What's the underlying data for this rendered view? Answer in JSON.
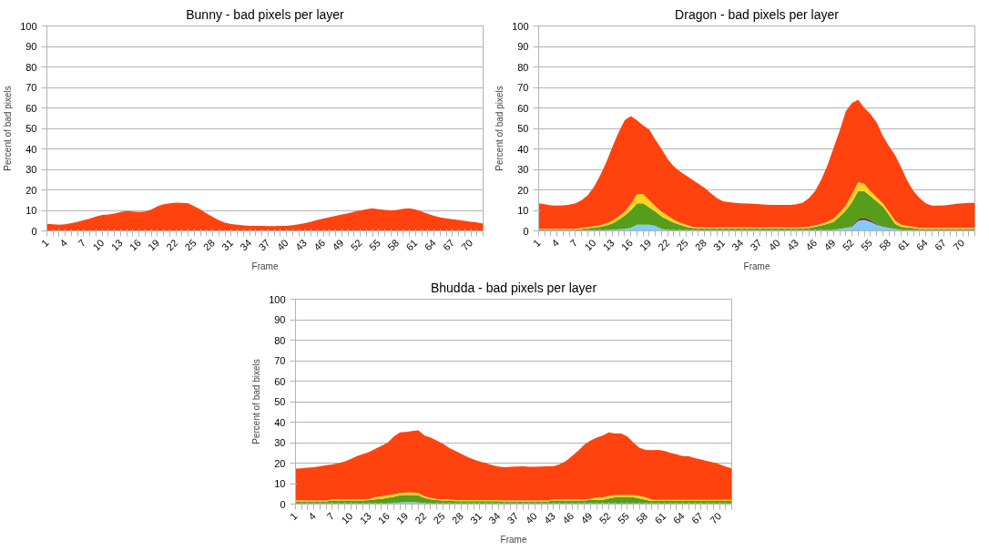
{
  "chart_data": [
    {
      "type": "area",
      "title": "Bunny - bad pixels per layer",
      "xlabel": "Frame",
      "ylabel": "Percent of bad pixels",
      "stacked": true,
      "grid": "y",
      "ylim": [
        0,
        100
      ],
      "yticks": [
        0,
        10,
        20,
        30,
        40,
        50,
        60,
        70,
        80,
        90,
        100
      ],
      "categories": [
        "1",
        null,
        null,
        "4",
        null,
        null,
        "7",
        null,
        null,
        "10",
        null,
        null,
        "13",
        null,
        null,
        "16",
        null,
        null,
        "19",
        null,
        null,
        "22",
        null,
        null,
        "25",
        null,
        null,
        "28",
        null,
        null,
        "31",
        null,
        null,
        "34",
        null,
        null,
        "37",
        null,
        null,
        "40",
        null,
        null,
        "43",
        null,
        null,
        "46",
        null,
        null,
        "49",
        null,
        null,
        "52",
        null,
        null,
        "55",
        null,
        null,
        "58",
        null,
        null,
        "61",
        null,
        null,
        "64",
        null,
        null,
        "67",
        null,
        null,
        "70",
        null,
        null
      ],
      "series": [
        {
          "color": "#ff420e",
          "values": [
            3.5,
            3.2,
            3,
            3.2,
            3.8,
            4.5,
            5.2,
            6,
            7,
            7.8,
            8,
            8.5,
            9.2,
            9.7,
            9.5,
            9.2,
            9.5,
            10.5,
            12,
            13,
            13.5,
            13.8,
            13.7,
            13.5,
            12,
            10.5,
            8.5,
            6.8,
            5.2,
            4,
            3.3,
            3,
            2.7,
            2.5,
            2.4,
            2.4,
            2.3,
            2.3,
            2.4,
            2.5,
            2.8,
            3.2,
            3.8,
            4.5,
            5.3,
            6,
            6.7,
            7.3,
            8,
            8.6,
            9.3,
            10,
            10.6,
            11,
            10.6,
            10.2,
            10,
            10.2,
            10.8,
            11,
            10.5,
            9.5,
            8.3,
            7.3,
            6.6,
            6.1,
            5.7,
            5.3,
            4.9,
            4.5,
            4.1,
            3.6
          ]
        }
      ]
    },
    {
      "type": "area",
      "title": "Dragon - bad pixels per layer",
      "xlabel": "Frame",
      "ylabel": "Percent of bad pixels",
      "stacked": true,
      "grid": "y",
      "ylim": [
        0,
        100
      ],
      "yticks": [
        0,
        10,
        20,
        30,
        40,
        50,
        60,
        70,
        80,
        90,
        100
      ],
      "categories": [
        "1",
        null,
        null,
        "4",
        null,
        null,
        "7",
        null,
        null,
        "10",
        null,
        null,
        "13",
        null,
        null,
        "16",
        null,
        null,
        "19",
        null,
        null,
        "22",
        null,
        null,
        "25",
        null,
        null,
        "28",
        null,
        null,
        "31",
        null,
        null,
        "34",
        null,
        null,
        "37",
        null,
        null,
        "40",
        null,
        null,
        "43",
        null,
        null,
        "46",
        null,
        null,
        "49",
        null,
        null,
        "52",
        null,
        null,
        "55",
        null,
        null,
        "58",
        null,
        null,
        "61",
        null,
        null,
        "64",
        null,
        null,
        "67",
        null,
        null,
        "70",
        null,
        null
      ],
      "series": [
        {
          "color": "#83caff",
          "values": [
            0.3,
            0.3,
            0.3,
            0.3,
            0.3,
            0.3,
            0.3,
            0.3,
            0.3,
            0.3,
            0.3,
            0.3,
            0.6,
            0.8,
            1,
            1.5,
            3,
            3,
            3,
            2.5,
            1,
            0.5,
            0.3,
            0.3,
            0.3,
            0.3,
            0.3,
            0.3,
            0.3,
            0.3,
            0.3,
            0.3,
            0.3,
            0.3,
            0.3,
            0.3,
            0.3,
            0.3,
            0.3,
            0.3,
            0.3,
            0.3,
            0.3,
            0.3,
            0.3,
            0.3,
            0.3,
            0.3,
            0.5,
            1,
            1.5,
            2,
            5,
            5.5,
            4.5,
            3,
            2,
            1.5,
            1,
            0.3,
            0.3,
            0.3,
            0.3,
            0.3,
            0.3,
            0.3,
            0.3,
            0.3,
            0.3,
            0.3,
            0.3,
            0.3
          ]
        },
        {
          "color": "#7e0021",
          "values": [
            0,
            0,
            0,
            0,
            0,
            0,
            0,
            0,
            0,
            0,
            0,
            0,
            0,
            0,
            0,
            0,
            0,
            0,
            0,
            0,
            0,
            0,
            0,
            0,
            0,
            0,
            0,
            0,
            0,
            0,
            0,
            0,
            0,
            0,
            0,
            0,
            0,
            0,
            0,
            0,
            0,
            0,
            0,
            0,
            0,
            0,
            0,
            0,
            0,
            0,
            0,
            0.3,
            0.7,
            0.8,
            0.6,
            0.3,
            0,
            0,
            0,
            0,
            0,
            0,
            0,
            0,
            0,
            0,
            0,
            0,
            0,
            0,
            0,
            0
          ]
        },
        {
          "color": "#579d1c",
          "values": [
            0.4,
            0.4,
            0.4,
            0.4,
            0.4,
            0.4,
            0.4,
            0.7,
            1,
            1.4,
            1.7,
            2.4,
            3.1,
            4.7,
            6.5,
            8.5,
            10.5,
            10.5,
            8.5,
            7,
            6,
            5,
            3.7,
            2.7,
            1.7,
            1.2,
            1,
            1,
            1,
            1,
            1,
            1,
            1,
            1,
            1,
            1,
            1,
            1,
            1,
            1,
            1,
            1,
            1,
            1,
            1.2,
            1.7,
            2.4,
            3.2,
            4,
            6,
            8.5,
            11.7,
            13.8,
            13.2,
            11.9,
            11.2,
            10,
            6.5,
            2.5,
            1.7,
            1.4,
            1.2,
            0.7,
            0.7,
            0.7,
            0.7,
            0.7,
            0.7,
            0.7,
            0.7,
            0.7,
            0.7
          ]
        },
        {
          "color": "#ffd320",
          "values": [
            0.3,
            0.3,
            0.3,
            0.3,
            0.3,
            0.3,
            0.3,
            0.5,
            0.5,
            0.5,
            0.8,
            1,
            1.3,
            1.5,
            2,
            3,
            4.5,
            4.5,
            3.5,
            2.5,
            2.5,
            2,
            1.5,
            1,
            1,
            0.5,
            0.4,
            0.4,
            0.4,
            0.4,
            0.4,
            0.4,
            0.4,
            0.4,
            0.4,
            0.4,
            0.4,
            0.4,
            0.4,
            0.4,
            0.4,
            0.4,
            0.4,
            0.4,
            0.5,
            0.7,
            0.8,
            1,
            1.5,
            2,
            2.5,
            4,
            4.3,
            3.5,
            2.5,
            2,
            1.5,
            1.5,
            1.5,
            1,
            0.8,
            0.5,
            0.5,
            0.5,
            0.5,
            0.5,
            0.5,
            0.5,
            0.5,
            0.5,
            0.5,
            0.5
          ]
        },
        {
          "color": "#ff420e",
          "values": [
            12.5,
            12,
            11.5,
            11.3,
            11.5,
            11.8,
            12.5,
            13.5,
            15.7,
            19.3,
            24.2,
            29.8,
            36,
            41,
            44.5,
            43,
            36,
            33.5,
            34.5,
            32.5,
            30.5,
            27.5,
            26,
            25,
            24,
            23,
            21.3,
            19.3,
            16.8,
            14.3,
            12.8,
            12.3,
            12,
            11.8,
            11.6,
            11.5,
            11.3,
            11.1,
            11,
            11,
            11,
            11,
            11.3,
            12.1,
            14,
            16.8,
            21.5,
            27.5,
            34.5,
            40,
            46,
            44.5,
            40.2,
            37,
            37.5,
            36.5,
            33,
            32,
            32,
            28,
            22,
            17.5,
            14.5,
            12,
            10.8,
            10.8,
            11,
            11.3,
            11.7,
            12,
            12.2,
            12.2
          ]
        }
      ]
    },
    {
      "type": "area",
      "title": "Bhudda - bad pixels per layer",
      "xlabel": "Frame",
      "ylabel": "Percent of bad bixels",
      "stacked": true,
      "grid": "y",
      "ylim": [
        0,
        100
      ],
      "yticks": [
        0,
        10,
        20,
        30,
        40,
        50,
        60,
        70,
        80,
        90,
        100
      ],
      "categories": [
        "1",
        null,
        null,
        "4",
        null,
        null,
        "7",
        null,
        null,
        "10",
        null,
        null,
        "13",
        null,
        null,
        "16",
        null,
        null,
        "19",
        null,
        null,
        "22",
        null,
        null,
        "25",
        null,
        null,
        "28",
        null,
        null,
        "31",
        null,
        null,
        "34",
        null,
        null,
        "37",
        null,
        null,
        "40",
        null,
        null,
        "43",
        null,
        null,
        "46",
        null,
        null,
        "49",
        null,
        null,
        "52",
        null,
        null,
        "55",
        null,
        null,
        "58",
        null,
        null,
        "61",
        null,
        null,
        "64",
        null,
        null,
        "67",
        null,
        null,
        "70",
        null,
        null
      ],
      "series": [
        {
          "color": "#83caff",
          "values": [
            0.3,
            0.3,
            0.3,
            0.3,
            0.3,
            0.3,
            0.3,
            0.3,
            0.3,
            0.3,
            0.3,
            0.3,
            0.3,
            0.3,
            0.3,
            0.3,
            0.6,
            0.8,
            1,
            1,
            0.8,
            0.5,
            0.3,
            0.3,
            0.3,
            0.3,
            0.3,
            0.3,
            0.3,
            0.3,
            0.3,
            0.3,
            0.3,
            0.3,
            0.3,
            0.3,
            0.3,
            0.3,
            0.3,
            0.3,
            0.3,
            0.3,
            0.3,
            0.3,
            0.3,
            0.3,
            0.3,
            0.3,
            0.3,
            0.3,
            0.3,
            0.3,
            0.3,
            0.3,
            0.3,
            0.3,
            0.3,
            0.3,
            0.3,
            0.3,
            0.3,
            0.3,
            0.3,
            0.3,
            0.3,
            0.3,
            0.3,
            0.3,
            0.3,
            0.3,
            0.3,
            0.3
          ]
        },
        {
          "color": "#579d1c",
          "values": [
            1,
            1,
            1,
            1,
            1,
            1,
            1.5,
            1.5,
            1.5,
            1.5,
            1.5,
            1.5,
            1.7,
            2,
            2.3,
            2.8,
            3,
            3.5,
            3.5,
            3.5,
            3.5,
            2.5,
            2,
            1.7,
            1.5,
            1.5,
            1.2,
            1.2,
            1.2,
            1.2,
            1.2,
            1.2,
            1.2,
            1.2,
            1,
            1,
            1,
            1,
            1,
            1,
            1,
            1,
            1.5,
            1.5,
            1.5,
            1.5,
            1.5,
            1.5,
            1.8,
            1.8,
            1.8,
            2.5,
            3,
            3,
            3,
            3,
            2.5,
            1.8,
            1.3,
            1.3,
            1.3,
            1.3,
            1.3,
            1.3,
            1.3,
            1.3,
            1.3,
            1.3,
            1.3,
            1.3,
            1.3,
            1.3
          ]
        },
        {
          "color": "#ffd320",
          "values": [
            0.5,
            0.5,
            0.5,
            0.5,
            0.5,
            0.5,
            0.5,
            0.5,
            0.5,
            0.5,
            0.5,
            0.5,
            0.5,
            1.2,
            1.2,
            1.2,
            1.2,
            1.2,
            1.2,
            1.2,
            1.2,
            0.8,
            0.8,
            0.5,
            0.5,
            0.5,
            0.5,
            0.5,
            0.5,
            0.5,
            0.5,
            0.5,
            0.5,
            0.5,
            0.5,
            0.5,
            0.5,
            0.5,
            0.5,
            0.5,
            0.5,
            0.5,
            0.5,
            0.5,
            0.5,
            0.5,
            0.5,
            0.5,
            0.5,
            1.2,
            1.2,
            1.2,
            1.2,
            1.2,
            1.2,
            1.2,
            1.2,
            1.2,
            0.5,
            0.5,
            0.5,
            0.5,
            0.5,
            0.5,
            0.5,
            0.5,
            0.5,
            0.5,
            0.5,
            0.5,
            0.5,
            0.5
          ]
        },
        {
          "color": "#ff420e",
          "values": [
            15.5,
            15.7,
            16,
            16.2,
            16.7,
            17.2,
            17,
            17.7,
            18.5,
            19.7,
            21.2,
            22.2,
            23,
            23.5,
            24.7,
            25.7,
            28.2,
            29.5,
            29.5,
            30,
            30.5,
            29.7,
            29.4,
            28.5,
            27.2,
            25.2,
            24,
            22.5,
            21,
            19.8,
            18.8,
            18,
            17,
            16.3,
            16.2,
            16.4,
            16.5,
            16.6,
            16.4,
            16.4,
            16.5,
            16.6,
            16.2,
            17.2,
            18.7,
            21.2,
            23.7,
            26.7,
            28.4,
            29.2,
            30.2,
            31,
            30,
            30,
            28.5,
            25.5,
            23.5,
            23.2,
            24.2,
            24.4,
            23.9,
            22.9,
            22.2,
            21.4,
            21.2,
            20.4,
            19.7,
            18.9,
            18.2,
            17.4,
            16.2,
            15.4
          ]
        }
      ]
    }
  ]
}
